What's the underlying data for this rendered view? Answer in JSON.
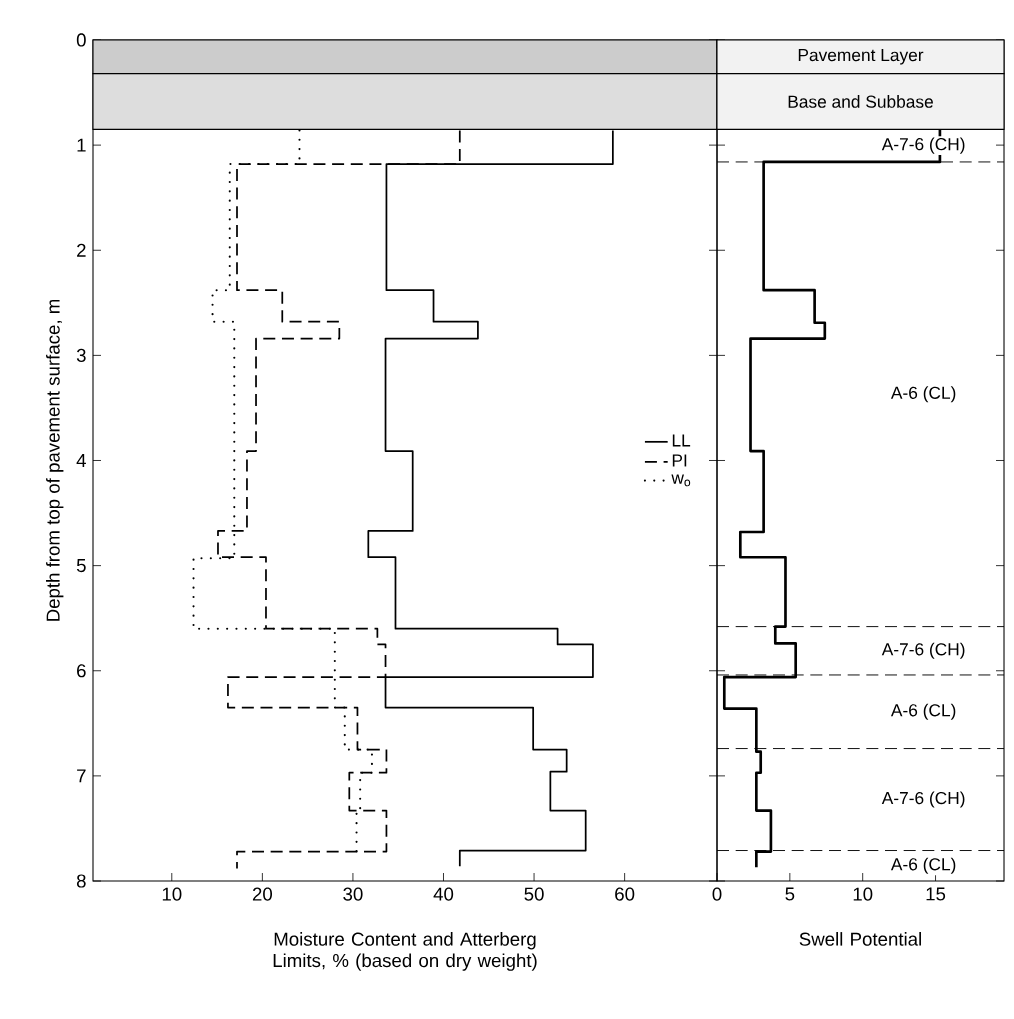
{
  "chart_data": [
    {
      "type": "line",
      "ylabel": "Depth from top of pavement surface, m",
      "xlabel": "Moisture Content and Atterberg Limits, % (based on dry weight)",
      "xlim": [
        1.3,
        70.2
      ],
      "xticks": [
        10,
        20,
        30,
        40,
        50,
        60
      ],
      "ylim": [
        8,
        0
      ],
      "yticks": [
        0,
        1,
        2,
        3,
        4,
        5,
        6,
        7,
        8
      ],
      "legend": "right",
      "bands": [
        {
          "axis": "y",
          "from": 0,
          "to": 0.32,
          "color": "#cccccc"
        },
        {
          "axis": "y",
          "from": 0.32,
          "to": 0.85,
          "color": "#dddddd"
        }
      ],
      "series": [
        {
          "name": "LL",
          "color": "#000000",
          "line_style": "solid",
          "x": [
            58.7,
            58.7,
            33.7,
            33.7,
            38.9,
            38.9,
            43.8,
            43.8,
            33.6,
            33.6,
            36.6,
            36.6,
            31.7,
            31.7,
            34.7,
            34.7,
            52.6,
            52.6,
            56.5,
            56.5,
            33.6,
            33.6,
            49.9,
            49.9,
            53.6,
            53.6,
            51.8,
            51.8,
            55.7,
            55.7,
            41.8,
            41.8
          ],
          "values": [
            0.86,
            1.18,
            1.18,
            2.38,
            2.38,
            2.68,
            2.68,
            2.84,
            2.84,
            3.91,
            3.91,
            4.67,
            4.67,
            4.92,
            4.92,
            5.6,
            5.6,
            5.75,
            5.75,
            6.06,
            6.06,
            6.35,
            6.35,
            6.75,
            6.75,
            6.96,
            6.96,
            7.33,
            7.33,
            7.71,
            7.71,
            7.86
          ]
        },
        {
          "name": "PI",
          "color": "#000000",
          "line_style": "dashed",
          "x": [
            41.8,
            41.8,
            17.2,
            17.2,
            22.2,
            22.2,
            28.5,
            28.5,
            19.3,
            19.3,
            18.3,
            18.3,
            15.1,
            15.1,
            20.4,
            20.4,
            32.7,
            32.7,
            33.6,
            33.6,
            16.2,
            16.2,
            30.5,
            30.5,
            33.7,
            33.7,
            29.6,
            29.6,
            33.7,
            33.7,
            17.2,
            17.2
          ],
          "values": [
            0.86,
            1.18,
            1.18,
            2.38,
            2.38,
            2.68,
            2.68,
            2.84,
            2.84,
            3.91,
            3.91,
            4.67,
            4.67,
            4.92,
            4.92,
            5.6,
            5.6,
            5.75,
            5.75,
            6.06,
            6.06,
            6.35,
            6.35,
            6.75,
            6.75,
            6.97,
            6.97,
            7.33,
            7.33,
            7.72,
            7.72,
            7.88
          ]
        },
        {
          "name": "w$_{o}$",
          "color": "#000000",
          "line_style": "dotted",
          "x": [
            24.1,
            24.1,
            16.4,
            16.4,
            14.5,
            14.5,
            16.9,
            16.9,
            12.4,
            12.4,
            28.0,
            28.0,
            29.1,
            29.1,
            32.1,
            32.1,
            30.8,
            30.8,
            30.4,
            30.4
          ],
          "values": [
            0.86,
            1.18,
            1.18,
            2.38,
            2.38,
            2.68,
            2.68,
            4.93,
            4.93,
            5.6,
            5.6,
            6.35,
            6.35,
            6.75,
            6.75,
            6.97,
            6.97,
            7.33,
            7.33,
            7.72
          ]
        }
      ]
    },
    {
      "type": "line",
      "xlabel": "Swell Potential",
      "xlim": [
        0,
        19.7
      ],
      "xticks": [
        0,
        5,
        10,
        15
      ],
      "ylim": [
        8,
        0
      ],
      "yticks": [
        0,
        1,
        2,
        3,
        4,
        5,
        6,
        7,
        8
      ],
      "tick_labels": "x",
      "bands": [
        {
          "axis": "y",
          "from": 0,
          "to": 0.32,
          "label": "Pavement Layer",
          "color": "#f2f2f2"
        },
        {
          "axis": "y",
          "from": 0.32,
          "to": 0.85,
          "label": "Base and Subbase",
          "color": "#f2f2f2"
        }
      ],
      "ref_lines": [
        {
          "axis": "y",
          "value": 1.16,
          "line_style": "dashed"
        },
        {
          "axis": "y",
          "value": 5.58,
          "line_style": "dashed"
        },
        {
          "axis": "y",
          "value": 6.04,
          "line_style": "dashed"
        },
        {
          "axis": "y",
          "value": 6.74,
          "line_style": "dashed"
        },
        {
          "axis": "y",
          "value": 7.71,
          "line_style": "dashed"
        }
      ],
      "annotations": [
        "A-7-6 (CH)",
        "A-6 (CL)",
        "A-7-6 (CH)",
        "A-6 (CL)",
        "A-7-6 (CH)",
        "A-6 (CL)"
      ],
      "series": [
        {
          "color": "#000000",
          "line_style": "solid",
          "x": [
            15.3,
            15.3,
            3.2,
            3.2,
            6.7,
            6.7,
            7.4,
            7.4,
            2.3,
            2.3,
            3.2,
            3.2,
            1.6,
            1.6,
            4.7,
            4.7,
            4.0,
            4.0,
            5.4,
            5.4,
            0.5,
            0.5,
            2.7,
            2.7,
            3.0,
            3.0,
            2.7,
            2.7,
            3.7,
            3.7,
            2.7,
            2.7
          ],
          "values": [
            0.85,
            1.16,
            1.16,
            2.38,
            2.38,
            2.69,
            2.69,
            2.84,
            2.84,
            3.91,
            3.91,
            4.68,
            4.68,
            4.92,
            4.92,
            5.58,
            5.58,
            5.74,
            5.74,
            6.06,
            6.06,
            6.36,
            6.36,
            6.77,
            6.77,
            6.97,
            6.97,
            7.33,
            7.33,
            7.72,
            7.72,
            7.87
          ]
        }
      ]
    }
  ]
}
